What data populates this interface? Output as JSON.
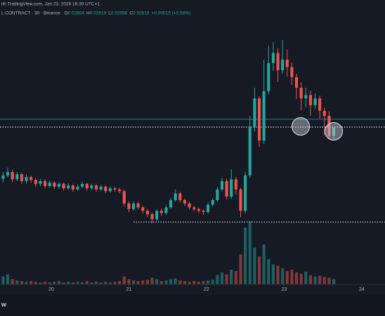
{
  "header": {
    "source": "ith TradingView.com, Jan 23, 2026 16:30 UTC+1",
    "symbol": "L CONTRACT · 30 · Binance",
    "ohlc": [
      {
        "label": "O",
        "value": "0.02604"
      },
      {
        "label": "H",
        "value": "0.02619"
      },
      {
        "label": "L",
        "value": "0.02596"
      },
      {
        "label": "C",
        "value": "0.02619"
      }
    ],
    "change": "+0.00015 (+0.58%)",
    "logo": "w"
  },
  "chart_data": {
    "type": "candlestick",
    "up_color": "#26a69a",
    "down_color": "#ef5350",
    "xlim": [
      19.34,
      24.3
    ],
    "xticks": [
      20,
      21,
      22,
      23,
      24
    ],
    "ylim": [
      0.0238,
      0.0282
    ],
    "volume_ylim": [
      0,
      100
    ],
    "x": [
      19.38,
      19.44,
      19.5,
      19.56,
      19.62,
      19.68,
      19.74,
      19.8,
      19.86,
      19.92,
      19.98,
      20.04,
      20.1,
      20.16,
      20.22,
      20.28,
      20.34,
      20.4,
      20.46,
      20.52,
      20.58,
      20.64,
      20.7,
      20.76,
      20.82,
      20.88,
      20.94,
      21,
      21.06,
      21.12,
      21.18,
      21.24,
      21.3,
      21.36,
      21.42,
      21.48,
      21.54,
      21.6,
      21.66,
      21.72,
      21.78,
      21.84,
      21.9,
      21.96,
      22.02,
      22.08,
      22.14,
      22.2,
      22.26,
      22.32,
      22.38,
      22.44,
      22.5,
      22.56,
      22.62,
      22.68,
      22.74,
      22.8,
      22.86,
      22.92,
      22.98,
      23.04,
      23.1,
      23.16,
      23.22,
      23.28,
      23.34,
      23.4,
      23.46,
      23.52,
      23.58,
      23.64
    ],
    "open": [
      0.02528,
      0.02534,
      0.0254,
      0.02527,
      0.02536,
      0.02524,
      0.02531,
      0.02526,
      0.02519,
      0.02524,
      0.02515,
      0.02521,
      0.02514,
      0.02519,
      0.02511,
      0.02516,
      0.02509,
      0.02514,
      0.02519,
      0.02511,
      0.02516,
      0.02509,
      0.02514,
      0.02506,
      0.02511,
      0.02509,
      0.02506,
      0.02484,
      0.02474,
      0.02484,
      0.02477,
      0.02471,
      0.02465,
      0.02456,
      0.02471,
      0.02467,
      0.02477,
      0.0249,
      0.02502,
      0.0249,
      0.02484,
      0.02477,
      0.02474,
      0.02471,
      0.02469,
      0.02482,
      0.0249,
      0.02509,
      0.02524,
      0.02496,
      0.02527,
      0.02509,
      0.02471,
      0.02534,
      0.02621,
      0.02671,
      0.02596,
      0.02684,
      0.02734,
      0.02752,
      0.02721,
      0.0274,
      0.02727,
      0.02709,
      0.0269,
      0.02671,
      0.02677,
      0.02659,
      0.02671,
      0.02649,
      0.0264,
      0.02604
    ],
    "high": [
      0.0254,
      0.02548,
      0.02544,
      0.0254,
      0.02539,
      0.02536,
      0.02534,
      0.02529,
      0.02528,
      0.02527,
      0.02525,
      0.02524,
      0.02522,
      0.02521,
      0.0252,
      0.02519,
      0.02518,
      0.02523,
      0.02521,
      0.02519,
      0.02519,
      0.02517,
      0.02516,
      0.02515,
      0.02514,
      0.02512,
      0.02509,
      0.02488,
      0.02488,
      0.02487,
      0.0248,
      0.02474,
      0.02468,
      0.02474,
      0.02475,
      0.02481,
      0.02494,
      0.02509,
      0.02505,
      0.02493,
      0.02487,
      0.0248,
      0.02477,
      0.02474,
      0.02486,
      0.02494,
      0.02513,
      0.0253,
      0.02528,
      0.02545,
      0.02531,
      0.02512,
      0.0254,
      0.0264,
      0.0269,
      0.02675,
      0.0274,
      0.02765,
      0.02771,
      0.0276,
      0.02775,
      0.02758,
      0.02735,
      0.02715,
      0.027,
      0.0269,
      0.02685,
      0.0268,
      0.02676,
      0.02655,
      0.02648,
      0.02619
    ],
    "low": [
      0.02522,
      0.0253,
      0.02522,
      0.02524,
      0.02519,
      0.0252,
      0.02521,
      0.02514,
      0.02515,
      0.02511,
      0.02512,
      0.0251,
      0.0251,
      0.02507,
      0.02508,
      0.02505,
      0.02506,
      0.02511,
      0.02507,
      0.02508,
      0.02505,
      0.02506,
      0.02502,
      0.02503,
      0.02505,
      0.02502,
      0.02479,
      0.02469,
      0.02471,
      0.02473,
      0.02466,
      0.0246,
      0.02449,
      0.02452,
      0.02462,
      0.02464,
      0.02474,
      0.02487,
      0.02486,
      0.0248,
      0.02473,
      0.0247,
      0.02467,
      0.02464,
      0.02466,
      0.02479,
      0.02487,
      0.02505,
      0.02491,
      0.02492,
      0.025,
      0.0246,
      0.02466,
      0.0253,
      0.02612,
      0.02585,
      0.0259,
      0.02678,
      0.0272,
      0.027,
      0.02715,
      0.0271,
      0.02695,
      0.0267,
      0.0265,
      0.02655,
      0.0264,
      0.02652,
      0.02635,
      0.02605,
      0.02598,
      0.02596
    ],
    "close": [
      0.02534,
      0.0254,
      0.02527,
      0.02536,
      0.02524,
      0.02531,
      0.02526,
      0.02519,
      0.02524,
      0.02515,
      0.02521,
      0.02514,
      0.02519,
      0.02511,
      0.02516,
      0.02509,
      0.02514,
      0.02519,
      0.02511,
      0.02516,
      0.02509,
      0.02514,
      0.02506,
      0.02511,
      0.02509,
      0.02506,
      0.02484,
      0.02474,
      0.02484,
      0.02477,
      0.02471,
      0.02465,
      0.02456,
      0.02471,
      0.02467,
      0.02477,
      0.0249,
      0.02502,
      0.0249,
      0.02484,
      0.02477,
      0.02474,
      0.02471,
      0.02469,
      0.02482,
      0.0249,
      0.02509,
      0.02524,
      0.02496,
      0.02527,
      0.02509,
      0.02471,
      0.02534,
      0.02621,
      0.02671,
      0.02596,
      0.02684,
      0.02734,
      0.02752,
      0.02721,
      0.0274,
      0.02727,
      0.02709,
      0.0269,
      0.02671,
      0.02677,
      0.02659,
      0.02671,
      0.02649,
      0.0264,
      0.02604,
      0.02619
    ],
    "volume": [
      12,
      15,
      8,
      6,
      5,
      4,
      5,
      4,
      3,
      4,
      3,
      4,
      5,
      3,
      4,
      3,
      4,
      3,
      5,
      3,
      4,
      3,
      4,
      3,
      4,
      5,
      12,
      8,
      6,
      5,
      6,
      7,
      10,
      8,
      5,
      6,
      8,
      9,
      6,
      5,
      4,
      5,
      4,
      5,
      6,
      7,
      14,
      18,
      15,
      22,
      20,
      45,
      85,
      95,
      55,
      42,
      60,
      38,
      30,
      28,
      24,
      20,
      22,
      18,
      16,
      19,
      14,
      12,
      13,
      11,
      10,
      8
    ],
    "levels": [
      {
        "value": 0.02634,
        "style": "solid",
        "color": "#2a8a88"
      },
      {
        "value": 0.0262,
        "style": "dotted",
        "color": "#d1d4dc"
      },
      {
        "value": 0.02451,
        "style": "dotted",
        "color": "#d1d4dc",
        "from": 21.06
      }
    ]
  }
}
